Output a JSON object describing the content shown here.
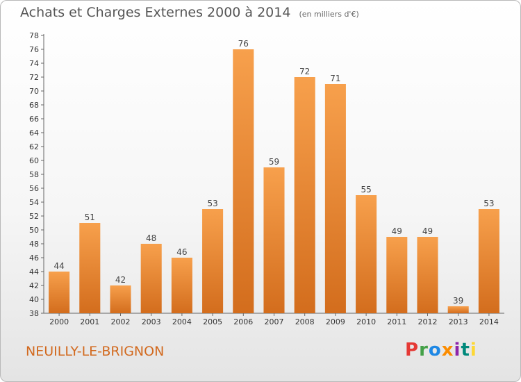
{
  "header": {
    "title": "Achats et Charges Externes 2000 à 2014",
    "unit": "(en milliers d'€)"
  },
  "footer": {
    "place": "NEUILLY-LE-BRIGNON",
    "logo_letters": [
      "P",
      "r",
      "o",
      "x",
      "i",
      "t",
      "i"
    ],
    "logo_colors": [
      "#e53935",
      "#43a047",
      "#1e88e5",
      "#fb8c00",
      "#8e24aa",
      "#00897b",
      "#fdd835"
    ]
  },
  "chart_data": {
    "type": "bar",
    "title": "Achats et Charges Externes 2000 à 2014",
    "xlabel": "",
    "ylabel": "",
    "categories": [
      "2000",
      "2001",
      "2002",
      "2003",
      "2004",
      "2005",
      "2006",
      "2007",
      "2008",
      "2009",
      "2010",
      "2011",
      "2012",
      "2013",
      "2014"
    ],
    "values": [
      44,
      51,
      42,
      48,
      46,
      53,
      76,
      59,
      72,
      71,
      55,
      49,
      49,
      39,
      53
    ],
    "ylim": [
      38,
      78
    ],
    "ytick_step": 2,
    "grid": false,
    "bar_color_top": "#f7a04c",
    "bar_color_bottom": "#d36d1d"
  }
}
